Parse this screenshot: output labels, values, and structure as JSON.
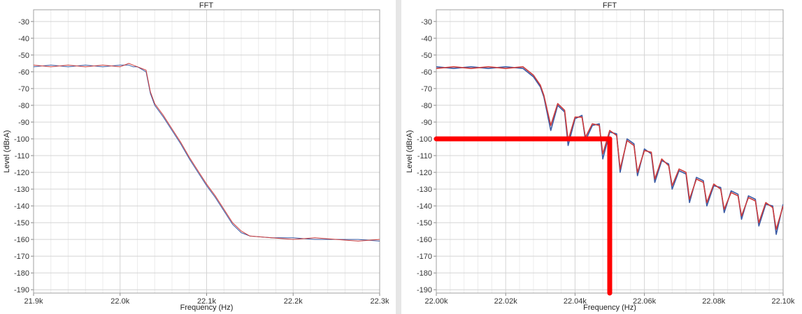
{
  "chart_data": [
    {
      "type": "line",
      "title": "FFT",
      "xlabel": "Frequency (Hz)",
      "ylabel": "Level (dBrA)",
      "xlim": [
        21900,
        22300
      ],
      "ylim": [
        -192,
        -23
      ],
      "xticks": [
        21900,
        22000,
        22100,
        22200,
        22300
      ],
      "xtick_labels": [
        "21.9k",
        "22.0k",
        "22.1k",
        "22.2k",
        "22.3k"
      ],
      "yticks": [
        -30,
        -40,
        -50,
        -60,
        -70,
        -80,
        -90,
        -100,
        -110,
        -120,
        -130,
        -140,
        -150,
        -160,
        -170,
        -180,
        -190
      ],
      "ytick_labels": [
        "-30",
        "-40",
        "-50",
        "-60",
        "-70",
        "-80",
        "-90",
        "-100",
        "-110",
        "-120",
        "-130",
        "-140",
        "-150",
        "-160",
        "-170",
        "-180",
        "-190"
      ],
      "grid": true,
      "series": [
        {
          "color": "#3b5ba5",
          "x": [
            21900,
            21920,
            21940,
            21960,
            21980,
            22000,
            22010,
            22015,
            22020,
            22030,
            22035,
            22040,
            22050,
            22060,
            22070,
            22080,
            22090,
            22100,
            22110,
            22120,
            22130,
            22140,
            22150,
            22175,
            22200,
            22225,
            22250,
            22275,
            22300
          ],
          "y": [
            -57,
            -56,
            -57,
            -56,
            -57,
            -56,
            -56,
            -57,
            -57,
            -60,
            -73,
            -80,
            -87,
            -95,
            -103,
            -112,
            -120,
            -128,
            -135,
            -143,
            -151,
            -156,
            -158,
            -159,
            -159,
            -160,
            -160,
            -160,
            -161
          ]
        },
        {
          "color": "#cc3b3b",
          "x": [
            21900,
            21920,
            21940,
            21960,
            21980,
            22000,
            22010,
            22015,
            22020,
            22030,
            22035,
            22040,
            22050,
            22060,
            22070,
            22080,
            22090,
            22100,
            22110,
            22120,
            22130,
            22140,
            22150,
            22175,
            22200,
            22225,
            22250,
            22275,
            22300
          ],
          "y": [
            -56,
            -57,
            -56,
            -57,
            -56,
            -57,
            -55,
            -56,
            -57,
            -59,
            -72,
            -79,
            -86,
            -94,
            -102,
            -111,
            -119,
            -127,
            -134,
            -142,
            -150,
            -155,
            -158,
            -159,
            -160,
            -159,
            -160,
            -161,
            -160
          ]
        }
      ]
    },
    {
      "type": "line",
      "title": "FFT",
      "xlabel": "Frequency (Hz)",
      "ylabel": "Level (dBrA)",
      "xlim": [
        22000,
        22100
      ],
      "ylim": [
        -192,
        -23
      ],
      "xticks": [
        22000,
        22020,
        22040,
        22060,
        22080,
        22100
      ],
      "xtick_labels": [
        "22.00k",
        "22.02k",
        "22.04k",
        "22.06k",
        "22.08k",
        "22.10k"
      ],
      "yticks": [
        -30,
        -40,
        -50,
        -60,
        -70,
        -80,
        -90,
        -100,
        -110,
        -120,
        -130,
        -140,
        -150,
        -160,
        -170,
        -180,
        -190
      ],
      "ytick_labels": [
        "-30",
        "-40",
        "-50",
        "-60",
        "-70",
        "-80",
        "-90",
        "-100",
        "-110",
        "-120",
        "-130",
        "-140",
        "-150",
        "-160",
        "-170",
        "-180",
        "-190"
      ],
      "grid": true,
      "series": [
        {
          "color": "#3b5ba5",
          "x": [
            22000,
            22005,
            22010,
            22015,
            22020,
            22025,
            22028,
            22030,
            22031,
            22033,
            22035,
            22037,
            22038,
            22040,
            22042,
            22043,
            22045,
            22047,
            22048,
            22050,
            22052,
            22053,
            22055,
            22057,
            22058,
            22060,
            22062,
            22063,
            22065,
            22067,
            22068,
            22070,
            22072,
            22073,
            22075,
            22077,
            22078,
            22080,
            22082,
            22083,
            22085,
            22087,
            22088,
            22090,
            22092,
            22093,
            22095,
            22097,
            22098,
            22100
          ],
          "y": [
            -57,
            -58,
            -57,
            -58,
            -57,
            -58,
            -63,
            -69,
            -75,
            -95,
            -80,
            -84,
            -104,
            -88,
            -86,
            -101,
            -92,
            -91,
            -112,
            -96,
            -97,
            -120,
            -100,
            -103,
            -122,
            -106,
            -109,
            -126,
            -113,
            -115,
            -130,
            -119,
            -121,
            -138,
            -123,
            -125,
            -140,
            -128,
            -129,
            -144,
            -131,
            -133,
            -148,
            -134,
            -136,
            -152,
            -139,
            -140,
            -157,
            -139
          ]
        },
        {
          "color": "#cc3b3b",
          "x": [
            22000,
            22005,
            22010,
            22015,
            22020,
            22025,
            22028,
            22030,
            22031,
            22033,
            22035,
            22037,
            22038,
            22040,
            22042,
            22043,
            22045,
            22047,
            22048,
            22050,
            22052,
            22053,
            22055,
            22057,
            22058,
            22060,
            22062,
            22063,
            22065,
            22067,
            22068,
            22070,
            22072,
            22073,
            22075,
            22077,
            22078,
            22080,
            22082,
            22083,
            22085,
            22087,
            22088,
            22090,
            22092,
            22093,
            22095,
            22097,
            22098,
            22100
          ],
          "y": [
            -58,
            -57,
            -58,
            -57,
            -58,
            -57,
            -62,
            -68,
            -74,
            -92,
            -79,
            -83,
            -101,
            -87,
            -87,
            -99,
            -91,
            -92,
            -109,
            -95,
            -98,
            -118,
            -101,
            -104,
            -120,
            -107,
            -108,
            -124,
            -112,
            -116,
            -128,
            -118,
            -120,
            -136,
            -124,
            -126,
            -138,
            -127,
            -130,
            -142,
            -132,
            -134,
            -146,
            -135,
            -137,
            -150,
            -138,
            -141,
            -154,
            -140
          ]
        }
      ],
      "annotations": [
        {
          "type": "reference-lines",
          "color": "#ff0000",
          "x": 22050,
          "y": -100
        }
      ]
    }
  ]
}
